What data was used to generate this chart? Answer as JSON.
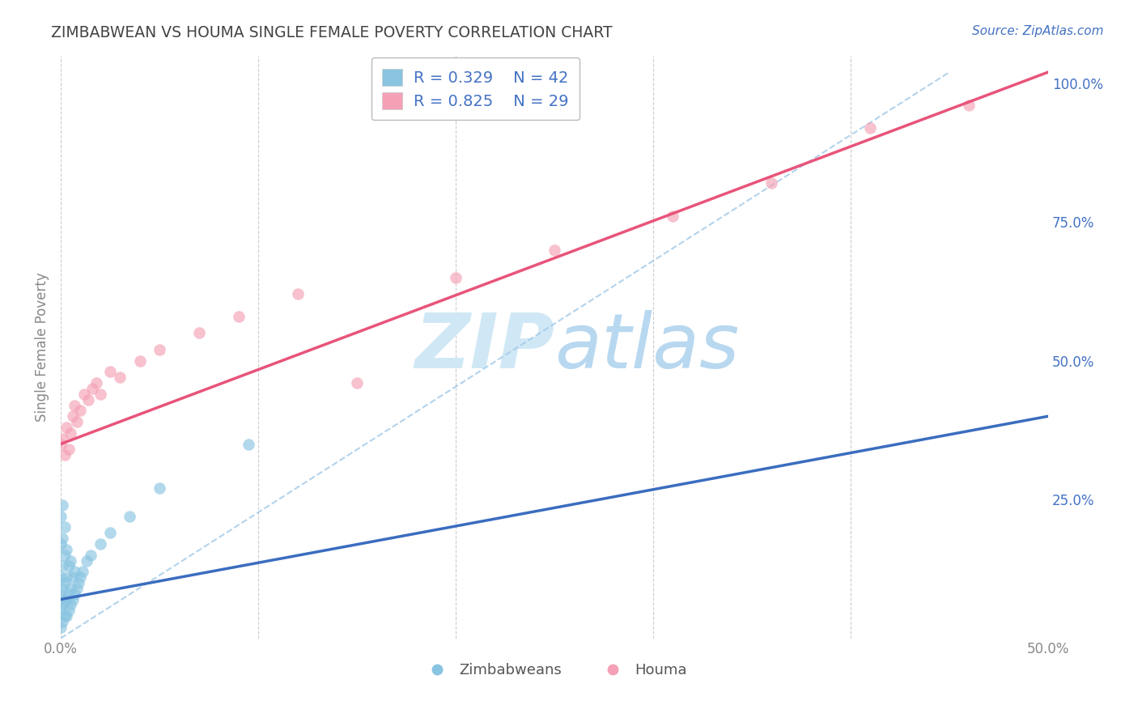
{
  "title": "ZIMBABWEAN VS HOUMA SINGLE FEMALE POVERTY CORRELATION CHART",
  "source_text": "Source: ZipAtlas.com",
  "ylabel_label": "Single Female Poverty",
  "xlim": [
    0.0,
    0.5
  ],
  "ylim": [
    0.0,
    1.05
  ],
  "xticks": [
    0.0,
    0.1,
    0.2,
    0.3,
    0.4,
    0.5
  ],
  "xtick_labels": [
    "0.0%",
    "",
    "",
    "",
    "",
    "50.0%"
  ],
  "ytick_labels_right": [
    "",
    "25.0%",
    "50.0%",
    "75.0%",
    "100.0%"
  ],
  "yticks_right": [
    0.0,
    0.25,
    0.5,
    0.75,
    1.0
  ],
  "blue_color": "#89c4e1",
  "pink_color": "#f4a0b5",
  "blue_line_color": "#3a6dbf",
  "pink_line_color": "#e8547a",
  "watermark_color": "#d0e8f5",
  "background_color": "#ffffff",
  "grid_color": "#cccccc",
  "title_color": "#444444",
  "source_color": "#4472c4",
  "axis_color": "#888888",
  "zimbabweans_x": [
    0.0,
    0.0,
    0.0,
    0.0,
    0.0,
    0.0,
    0.001,
    0.001,
    0.001,
    0.001,
    0.001,
    0.001,
    0.002,
    0.002,
    0.002,
    0.002,
    0.002,
    0.003,
    0.003,
    0.003,
    0.003,
    0.004,
    0.004,
    0.004,
    0.005,
    0.005,
    0.005,
    0.006,
    0.006,
    0.007,
    0.007,
    0.008,
    0.009,
    0.01,
    0.011,
    0.013,
    0.015,
    0.02,
    0.025,
    0.035,
    0.05,
    0.095
  ],
  "zimbabweans_y": [
    0.02,
    0.05,
    0.08,
    0.11,
    0.17,
    0.22,
    0.03,
    0.06,
    0.09,
    0.13,
    0.18,
    0.24,
    0.04,
    0.07,
    0.1,
    0.15,
    0.2,
    0.04,
    0.07,
    0.11,
    0.16,
    0.05,
    0.08,
    0.13,
    0.06,
    0.09,
    0.14,
    0.07,
    0.11,
    0.08,
    0.12,
    0.09,
    0.1,
    0.11,
    0.12,
    0.14,
    0.15,
    0.17,
    0.19,
    0.22,
    0.27,
    0.35
  ],
  "houma_x": [
    0.0,
    0.001,
    0.002,
    0.003,
    0.004,
    0.005,
    0.006,
    0.007,
    0.008,
    0.01,
    0.012,
    0.014,
    0.016,
    0.018,
    0.02,
    0.025,
    0.03,
    0.04,
    0.05,
    0.07,
    0.09,
    0.12,
    0.15,
    0.2,
    0.25,
    0.31,
    0.36,
    0.41,
    0.46
  ],
  "houma_y": [
    0.35,
    0.36,
    0.33,
    0.38,
    0.34,
    0.37,
    0.4,
    0.42,
    0.39,
    0.41,
    0.44,
    0.43,
    0.45,
    0.46,
    0.44,
    0.48,
    0.47,
    0.5,
    0.52,
    0.55,
    0.58,
    0.62,
    0.46,
    0.65,
    0.7,
    0.76,
    0.82,
    0.92,
    0.96
  ],
  "blue_line_x0": 0.0,
  "blue_line_y0": 0.07,
  "blue_line_x1": 0.5,
  "blue_line_y1": 0.4,
  "pink_line_x0": 0.0,
  "pink_line_y0": 0.35,
  "pink_line_x1": 0.5,
  "pink_line_y1": 1.02,
  "ref_line_x0": 0.0,
  "ref_line_y0": 0.0,
  "ref_line_x1": 0.45,
  "ref_line_y1": 1.02
}
